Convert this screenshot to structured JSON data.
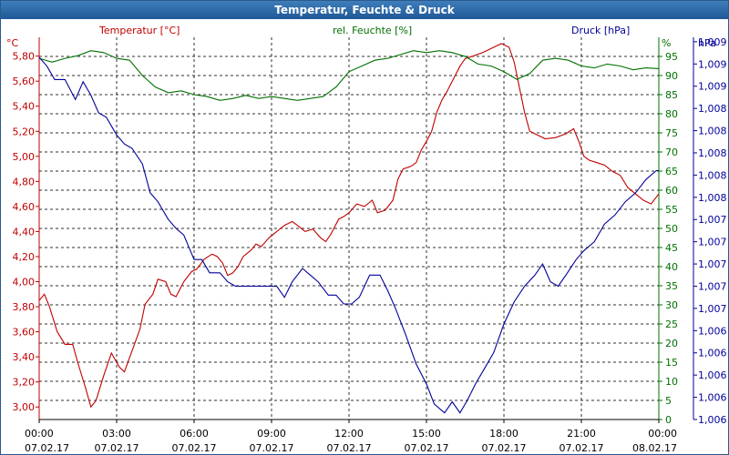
{
  "window": {
    "title": "Temperatur, Feuchte & Druck"
  },
  "colors": {
    "temperature": "#c00000",
    "humidity": "#007000",
    "pressure": "#000099",
    "grid": "#000000",
    "title_bg": "#1f5797"
  },
  "chart_data": {
    "type": "line",
    "title": "Temperatur, Feuchte & Druck",
    "x_ticks": [
      {
        "time": "00:00",
        "date": "07.02.17",
        "hour": 0
      },
      {
        "time": "03:00",
        "date": "07.02.17",
        "hour": 3
      },
      {
        "time": "06:00",
        "date": "07.02.17",
        "hour": 6
      },
      {
        "time": "09:00",
        "date": "07.02.17",
        "hour": 9
      },
      {
        "time": "12:00",
        "date": "07.02.17",
        "hour": 12
      },
      {
        "time": "15:00",
        "date": "07.02.17",
        "hour": 15
      },
      {
        "time": "18:00",
        "date": "07.02.17",
        "hour": 18
      },
      {
        "time": "21:00",
        "date": "07.02.17",
        "hour": 21
      },
      {
        "time": "00:00",
        "date": "08.02.17",
        "hour": 24
      }
    ],
    "axes": {
      "temperature": {
        "label": "Temperatur [°C]",
        "unit": "°C",
        "min": 2.9,
        "max": 5.95,
        "ticks": [
          "3,00",
          "3,20",
          "3,40",
          "3,60",
          "3,80",
          "4,00",
          "4,20",
          "4,40",
          "4,60",
          "4,80",
          "5,00",
          "5,20",
          "5,40",
          "5,60",
          "5,80"
        ],
        "tick_values": [
          3.0,
          3.2,
          3.4,
          3.6,
          3.8,
          4.0,
          4.2,
          4.4,
          4.6,
          4.8,
          5.0,
          5.2,
          5.4,
          5.6,
          5.8
        ]
      },
      "humidity": {
        "label": "rel. Feuchte [%]",
        "unit": "%",
        "min": 0,
        "max": 100,
        "ticks": [
          "0",
          "5",
          "10",
          "15",
          "20",
          "25",
          "30",
          "35",
          "40",
          "45",
          "50",
          "55",
          "60",
          "65",
          "70",
          "75",
          "80",
          "85",
          "90",
          "95"
        ],
        "tick_values": [
          0,
          5,
          10,
          15,
          20,
          25,
          30,
          35,
          40,
          45,
          50,
          55,
          60,
          65,
          70,
          75,
          80,
          85,
          90,
          95
        ]
      },
      "pressure": {
        "label": "Druck [hPa]",
        "unit": "hPa",
        "min": 0,
        "max": 17.2,
        "ticks": [
          "1,006",
          "1,006",
          "1,006",
          "1,006",
          "1,006",
          "1,007",
          "1,007",
          "1,007",
          "1,007",
          "1,007",
          "1,008",
          "1,008",
          "1,008",
          "1,008",
          "1,008",
          "1,009",
          "1,009",
          "1,009"
        ],
        "tick_values": [
          0,
          1,
          2,
          3,
          4,
          5,
          6,
          7,
          8,
          9,
          10,
          11,
          12,
          13,
          14,
          15,
          16,
          17
        ]
      }
    },
    "series": [
      {
        "name": "Temperatur",
        "axis": "temperature",
        "points": [
          [
            0,
            3.85
          ],
          [
            0.2,
            3.9
          ],
          [
            0.4,
            3.8
          ],
          [
            0.7,
            3.6
          ],
          [
            1.0,
            3.5
          ],
          [
            1.3,
            3.5
          ],
          [
            1.5,
            3.35
          ],
          [
            1.8,
            3.15
          ],
          [
            2.0,
            3.0
          ],
          [
            2.2,
            3.05
          ],
          [
            2.5,
            3.25
          ],
          [
            2.8,
            3.43
          ],
          [
            3.1,
            3.32
          ],
          [
            3.3,
            3.28
          ],
          [
            3.6,
            3.45
          ],
          [
            3.9,
            3.62
          ],
          [
            4.1,
            3.82
          ],
          [
            4.4,
            3.9
          ],
          [
            4.6,
            4.02
          ],
          [
            4.9,
            4.0
          ],
          [
            5.1,
            3.9
          ],
          [
            5.3,
            3.88
          ],
          [
            5.6,
            4.0
          ],
          [
            5.9,
            4.08
          ],
          [
            6.1,
            4.1
          ],
          [
            6.4,
            4.18
          ],
          [
            6.7,
            4.22
          ],
          [
            6.9,
            4.2
          ],
          [
            7.1,
            4.15
          ],
          [
            7.3,
            4.05
          ],
          [
            7.5,
            4.07
          ],
          [
            7.7,
            4.12
          ],
          [
            7.9,
            4.2
          ],
          [
            8.2,
            4.25
          ],
          [
            8.4,
            4.3
          ],
          [
            8.6,
            4.28
          ],
          [
            8.9,
            4.35
          ],
          [
            9.2,
            4.4
          ],
          [
            9.5,
            4.45
          ],
          [
            9.8,
            4.48
          ],
          [
            10.0,
            4.45
          ],
          [
            10.3,
            4.4
          ],
          [
            10.6,
            4.42
          ],
          [
            10.9,
            4.35
          ],
          [
            11.1,
            4.32
          ],
          [
            11.3,
            4.38
          ],
          [
            11.6,
            4.5
          ],
          [
            11.8,
            4.52
          ],
          [
            12.0,
            4.55
          ],
          [
            12.3,
            4.62
          ],
          [
            12.6,
            4.6
          ],
          [
            12.9,
            4.65
          ],
          [
            13.1,
            4.55
          ],
          [
            13.4,
            4.57
          ],
          [
            13.7,
            4.65
          ],
          [
            13.9,
            4.82
          ],
          [
            14.1,
            4.9
          ],
          [
            14.4,
            4.92
          ],
          [
            14.6,
            4.95
          ],
          [
            14.8,
            5.05
          ],
          [
            15.0,
            5.12
          ],
          [
            15.2,
            5.2
          ],
          [
            15.4,
            5.35
          ],
          [
            15.6,
            5.45
          ],
          [
            15.8,
            5.52
          ],
          [
            16.0,
            5.6
          ],
          [
            16.3,
            5.72
          ],
          [
            16.5,
            5.78
          ],
          [
            16.8,
            5.8
          ],
          [
            17.2,
            5.83
          ],
          [
            17.6,
            5.87
          ],
          [
            17.9,
            5.9
          ],
          [
            18.2,
            5.87
          ],
          [
            18.4,
            5.75
          ],
          [
            18.6,
            5.55
          ],
          [
            18.8,
            5.35
          ],
          [
            19.0,
            5.2
          ],
          [
            19.3,
            5.17
          ],
          [
            19.6,
            5.14
          ],
          [
            20.0,
            5.15
          ],
          [
            20.4,
            5.18
          ],
          [
            20.7,
            5.22
          ],
          [
            20.9,
            5.12
          ],
          [
            21.1,
            5.0
          ],
          [
            21.3,
            4.97
          ],
          [
            21.6,
            4.95
          ],
          [
            21.9,
            4.93
          ],
          [
            22.2,
            4.88
          ],
          [
            22.5,
            4.85
          ],
          [
            22.8,
            4.75
          ],
          [
            23.1,
            4.7
          ],
          [
            23.4,
            4.65
          ],
          [
            23.7,
            4.62
          ],
          [
            24.0,
            4.7
          ]
        ]
      },
      {
        "name": "rel. Feuchte",
        "axis": "humidity",
        "points": [
          [
            0,
            94.5
          ],
          [
            0.5,
            93.5
          ],
          [
            1.0,
            94.5
          ],
          [
            1.5,
            95.2
          ],
          [
            2.0,
            96.5
          ],
          [
            2.5,
            96.0
          ],
          [
            3.0,
            94.5
          ],
          [
            3.5,
            94.0
          ],
          [
            4.0,
            90.0
          ],
          [
            4.5,
            87.0
          ],
          [
            5.0,
            85.5
          ],
          [
            5.5,
            86.0
          ],
          [
            6.0,
            85.0
          ],
          [
            6.5,
            84.5
          ],
          [
            7.0,
            83.5
          ],
          [
            7.5,
            84.0
          ],
          [
            8.0,
            84.8
          ],
          [
            8.5,
            84.0
          ],
          [
            9.0,
            84.5
          ],
          [
            9.5,
            84.0
          ],
          [
            10.0,
            83.5
          ],
          [
            10.5,
            84.0
          ],
          [
            11.0,
            84.5
          ],
          [
            11.5,
            87.0
          ],
          [
            12.0,
            91.0
          ],
          [
            12.5,
            92.5
          ],
          [
            13.0,
            94.0
          ],
          [
            13.5,
            94.5
          ],
          [
            14.0,
            95.5
          ],
          [
            14.5,
            96.5
          ],
          [
            15.0,
            96.0
          ],
          [
            15.5,
            96.5
          ],
          [
            16.0,
            96.0
          ],
          [
            16.5,
            95.0
          ],
          [
            17.0,
            93.0
          ],
          [
            17.5,
            92.5
          ],
          [
            18.0,
            91.0
          ],
          [
            18.5,
            89.0
          ],
          [
            19.0,
            90.5
          ],
          [
            19.5,
            94.0
          ],
          [
            20.0,
            94.5
          ],
          [
            20.5,
            94.0
          ],
          [
            21.0,
            92.5
          ],
          [
            21.5,
            92.0
          ],
          [
            22.0,
            93.0
          ],
          [
            22.5,
            92.5
          ],
          [
            23.0,
            91.5
          ],
          [
            23.5,
            92.0
          ],
          [
            24.0,
            91.8
          ]
        ]
      },
      {
        "name": "Druck",
        "axis": "pressure",
        "points": [
          [
            0,
            16.3
          ],
          [
            0.3,
            15.9
          ],
          [
            0.6,
            15.3
          ],
          [
            1.0,
            15.3
          ],
          [
            1.4,
            14.4
          ],
          [
            1.7,
            15.2
          ],
          [
            2.0,
            14.6
          ],
          [
            2.3,
            13.8
          ],
          [
            2.6,
            13.6
          ],
          [
            3.0,
            12.8
          ],
          [
            3.3,
            12.4
          ],
          [
            3.6,
            12.2
          ],
          [
            4.0,
            11.5
          ],
          [
            4.3,
            10.2
          ],
          [
            4.6,
            9.8
          ],
          [
            5.0,
            9.0
          ],
          [
            5.3,
            8.6
          ],
          [
            5.6,
            8.3
          ],
          [
            6.0,
            7.2
          ],
          [
            6.3,
            7.2
          ],
          [
            6.6,
            6.6
          ],
          [
            7.0,
            6.6
          ],
          [
            7.3,
            6.2
          ],
          [
            7.6,
            6.0
          ],
          [
            8.0,
            6.0
          ],
          [
            8.4,
            6.0
          ],
          [
            8.8,
            6.0
          ],
          [
            9.2,
            6.0
          ],
          [
            9.5,
            5.5
          ],
          [
            9.8,
            6.2
          ],
          [
            10.2,
            6.8
          ],
          [
            10.5,
            6.5
          ],
          [
            10.8,
            6.2
          ],
          [
            11.2,
            5.6
          ],
          [
            11.5,
            5.6
          ],
          [
            11.8,
            5.2
          ],
          [
            12.1,
            5.2
          ],
          [
            12.4,
            5.5
          ],
          [
            12.8,
            6.5
          ],
          [
            13.2,
            6.5
          ],
          [
            13.5,
            5.8
          ],
          [
            13.8,
            5.0
          ],
          [
            14.2,
            3.8
          ],
          [
            14.6,
            2.5
          ],
          [
            15.0,
            1.6
          ],
          [
            15.3,
            0.7
          ],
          [
            15.7,
            0.3
          ],
          [
            16.0,
            0.8
          ],
          [
            16.3,
            0.3
          ],
          [
            16.6,
            0.9
          ],
          [
            16.9,
            1.6
          ],
          [
            17.2,
            2.2
          ],
          [
            17.6,
            3.0
          ],
          [
            18.0,
            4.3
          ],
          [
            18.4,
            5.3
          ],
          [
            18.8,
            6.0
          ],
          [
            19.2,
            6.5
          ],
          [
            19.5,
            7.0
          ],
          [
            19.8,
            6.2
          ],
          [
            20.1,
            6.0
          ],
          [
            20.4,
            6.5
          ],
          [
            20.8,
            7.2
          ],
          [
            21.1,
            7.6
          ],
          [
            21.5,
            8.0
          ],
          [
            21.9,
            8.8
          ],
          [
            22.3,
            9.2
          ],
          [
            22.7,
            9.8
          ],
          [
            23.1,
            10.2
          ],
          [
            23.5,
            10.8
          ],
          [
            23.9,
            11.2
          ],
          [
            24.0,
            11.2
          ]
        ]
      }
    ]
  }
}
